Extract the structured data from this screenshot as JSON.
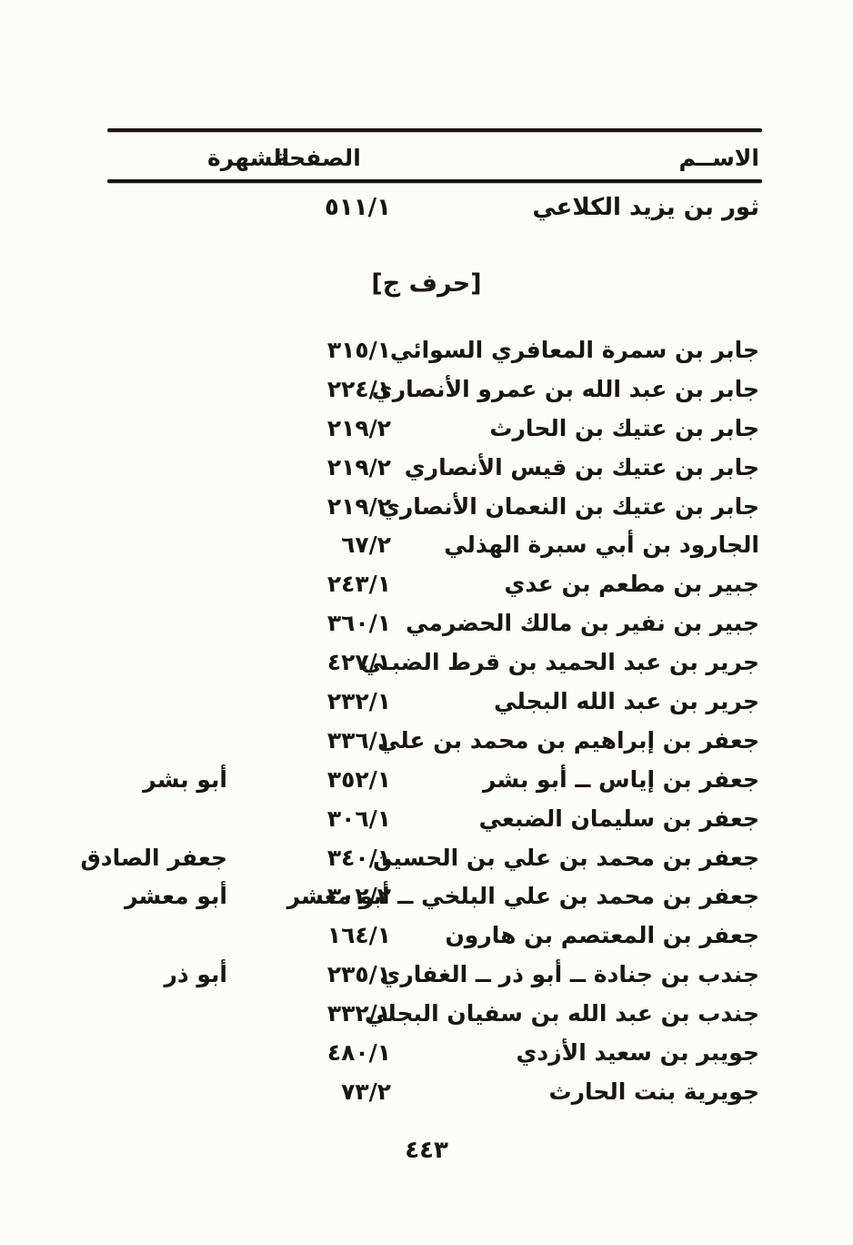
{
  "document": {
    "colors": {
      "ink": "#181512",
      "paper": "#fcfcfa"
    },
    "columns": {
      "name_label": "الاســم",
      "page_label": "الصفحة",
      "fame_label": "الشهرة"
    },
    "first_entry": {
      "name": "ثور بن يزيد الكلاعي",
      "page": "٥١١/١",
      "fame": ""
    },
    "section_title": "[حرف ج]",
    "entries": [
      {
        "name": "جابر بن سمرة المعافري السوائي",
        "page": "٣١٥/١",
        "fame": ""
      },
      {
        "name": "جابر بن عبد الله بن عمرو الأنصاري",
        "page": "٢٢٤/١",
        "fame": ""
      },
      {
        "name": "جابر بن عتيك بن الحارث",
        "page": "٢١٩/٢",
        "fame": ""
      },
      {
        "name": "جابر بن عتيك بن قيس الأنصاري",
        "page": "٢١٩/٢",
        "fame": ""
      },
      {
        "name": "جابر بن عتيك بن النعمان الأنصاري",
        "page": "٢١٩/٢",
        "fame": ""
      },
      {
        "name": "الجارود بن أبي سبرة الهذلي",
        "page": "٦٧/٢",
        "fame": ""
      },
      {
        "name": "جبير بن مطعم بن عدي",
        "page": "٢٤٣/١",
        "fame": ""
      },
      {
        "name": "جبير بن نفير بن مالك الحضرمي",
        "page": "٣٦٠/١",
        "fame": ""
      },
      {
        "name": "جرير بن عبد الحميد بن قرط الضبـي",
        "page": "٤٢٧/١",
        "fame": ""
      },
      {
        "name": "جرير بن عبد الله البجلي",
        "page": "٢٣٢/١",
        "fame": ""
      },
      {
        "name": "جعفر بن إبراهيم بن محمد بن علي",
        "page": "٣٣٦/١",
        "fame": ""
      },
      {
        "name": "جعفر بن إياس ــ أبو بشر",
        "page": "٣٥٢/١",
        "fame": "أبو بشر"
      },
      {
        "name": "جعفر بن سليمان الضبعي",
        "page": "٣٠٦/١",
        "fame": ""
      },
      {
        "name": "جعفر بن محمد بن علي بن الحسين",
        "page": "٣٤٠/١",
        "fame": "جعفر الصادق"
      },
      {
        "name": "جعفر بن محمد بن علي البلخي ــ أبو معشر",
        "page": "٣٠٢/٢",
        "fame": "أبو معشر"
      },
      {
        "name": "جعفر بن المعتصم بن هارون",
        "page": "١٦٤/١",
        "fame": ""
      },
      {
        "name": "جندب بن جنادة ــ أبو ذر ــ الغفاري",
        "page": "٢٣٥/١",
        "fame": "أبو ذر"
      },
      {
        "name": "جندب بن عبد الله بن سفيان البجلي",
        "page": "٣٣٢/١",
        "fame": ""
      },
      {
        "name": "جويبر بن سعيد الأزدي",
        "page": "٤٨٠/١",
        "fame": ""
      },
      {
        "name": "جويرية بنت الحارث",
        "page": "٧٣/٢",
        "fame": ""
      }
    ],
    "page_number": "٤٤٣"
  }
}
